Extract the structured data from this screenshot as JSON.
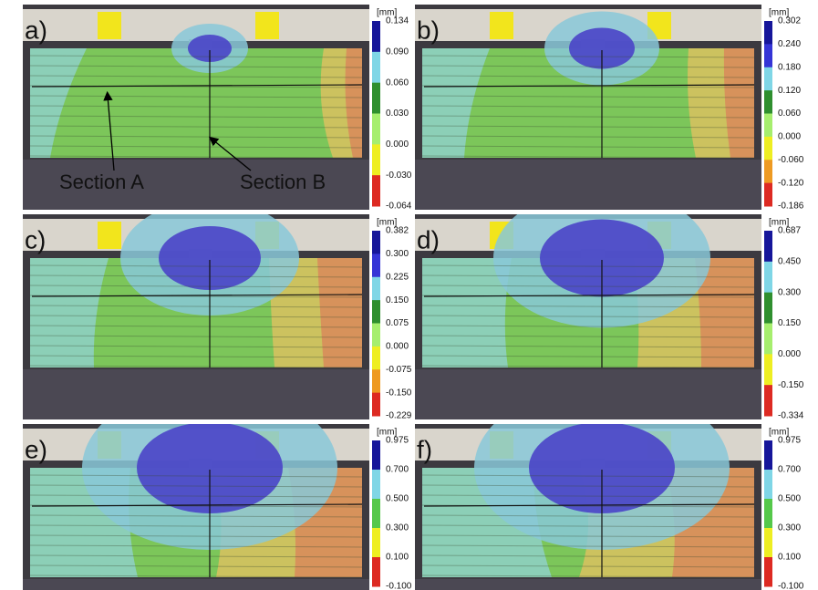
{
  "panels": [
    {
      "label": "a)",
      "unit": "[mm]",
      "ticks": [
        "0.134",
        "0.090",
        "0.060",
        "0.030",
        "0.000",
        "-0.030",
        "-0.064"
      ]
    },
    {
      "label": "b)",
      "unit": "[mm]",
      "ticks": [
        "0.302",
        "0.240",
        "0.180",
        "0.120",
        "0.060",
        "0.000",
        "-0.060",
        "-0.120",
        "-0.186"
      ]
    },
    {
      "label": "c)",
      "unit": "[mm]",
      "ticks": [
        "0.382",
        "0.300",
        "0.225",
        "0.150",
        "0.075",
        "0.000",
        "-0.075",
        "-0.150",
        "-0.229"
      ]
    },
    {
      "label": "d)",
      "unit": "[mm]",
      "ticks": [
        "0.687",
        "0.450",
        "0.300",
        "0.150",
        "0.000",
        "-0.150",
        "-0.334"
      ]
    },
    {
      "label": "e)",
      "unit": "[mm]",
      "ticks": [
        "0.975",
        "0.700",
        "0.500",
        "0.300",
        "0.100",
        "-0.100"
      ]
    },
    {
      "label": "f)",
      "unit": "[mm]",
      "ticks": [
        "0.975",
        "0.700",
        "0.500",
        "0.300",
        "0.100",
        "-0.100"
      ]
    }
  ],
  "annotations": {
    "section_a": "Section A",
    "section_b": "Section B"
  }
}
